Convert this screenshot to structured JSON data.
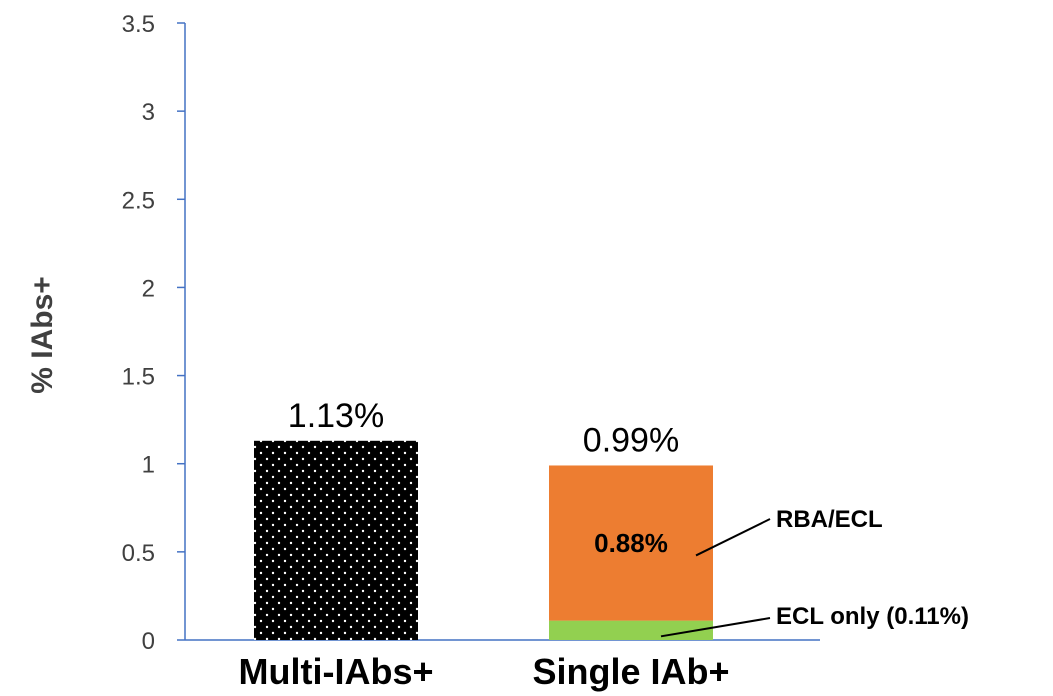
{
  "chart_data": {
    "type": "bar",
    "ylabel": "% IAbs+",
    "xlabel": "",
    "ylim": [
      0,
      3.5
    ],
    "yticks": [
      "0",
      "0.5",
      "1",
      "1.5",
      "2",
      "2.5",
      "3",
      "3.5"
    ],
    "grid": false,
    "categories": [
      "Multi-IAbs+",
      "Single IAb+"
    ],
    "bars": [
      {
        "category": "Multi-IAbs+",
        "total_label": "1.13%",
        "segments": [
          {
            "value": 1.13,
            "color": "#000000",
            "pattern": "white-dots"
          }
        ]
      },
      {
        "category": "Single IAb+",
        "total_label": "0.99%",
        "segments": [
          {
            "value": 0.11,
            "color": "#92D050",
            "annotation": "ECL only (0.11%)"
          },
          {
            "value": 0.88,
            "color": "#ED7D31",
            "label": "0.88%",
            "annotation": "RBA/ECL"
          }
        ]
      }
    ]
  },
  "colors": {
    "axis": "#4472C4",
    "tick_text": "#404040"
  }
}
